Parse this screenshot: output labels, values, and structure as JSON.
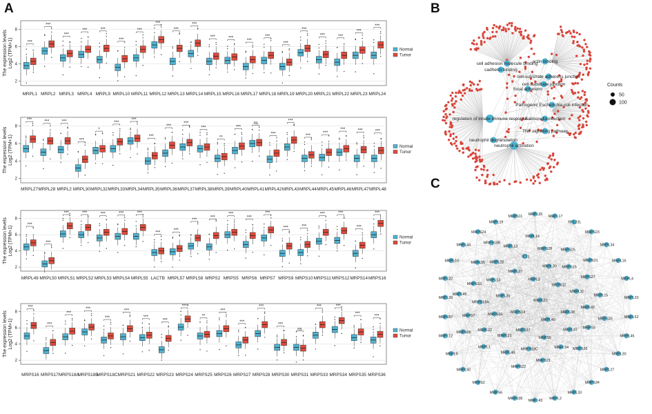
{
  "figure": {
    "panel_labels": {
      "a": "A",
      "b": "B",
      "c": "C"
    },
    "colors": {
      "normal": "#4fb3d2",
      "tumor": "#dd4b3c",
      "grid": "#d9d9d9",
      "edge": "#bdbdbd",
      "enrich_term": "#4fb3d2",
      "enrich_gene": "#d8453a",
      "net_node": "#4fb3d2",
      "net_edge": "#b6b6b6"
    }
  },
  "chart_data": [
    {
      "type": "boxplot",
      "panel": "A1",
      "ylabel": "The expression levels",
      "ylabel2": "Log2 (TPM+1)",
      "yticks": [
        2,
        4,
        6,
        8
      ],
      "ylim": [
        1.5,
        9
      ],
      "legend": [
        "Normal",
        "Tumor"
      ],
      "categories": [
        "MRPL1",
        "MRPL2",
        "MRPL3",
        "MRPL4",
        "MRPL9",
        "MRPL10",
        "MRPL11",
        "MRPL12",
        "MRPL13",
        "MRPL14",
        "MRPL15",
        "MRPL16",
        "MRPL17",
        "MRPL18",
        "MRPL19",
        "MRPL20",
        "MRPL21",
        "MRPL22",
        "MRPL23",
        "MRPL24"
      ],
      "series": [
        {
          "name": "Normal",
          "median": [
            3.8,
            5.5,
            4.7,
            5.1,
            4.5,
            3.6,
            4.7,
            6.2,
            4.3,
            5.2,
            4.3,
            4.4,
            3.7,
            4.4,
            3.7,
            5.3,
            4.5,
            4.2,
            5.0,
            5.0
          ]
        },
        {
          "name": "Tumor",
          "median": [
            4.3,
            6.3,
            5.2,
            5.7,
            5.8,
            4.6,
            5.7,
            6.8,
            5.8,
            6.4,
            4.9,
            4.8,
            4.5,
            5.0,
            4.2,
            5.8,
            5.1,
            5.0,
            5.6,
            6.2
          ]
        }
      ],
      "significance": [
        "***",
        "***",
        "***",
        "***",
        "***",
        "***",
        "***",
        "***",
        "***",
        "***",
        "***",
        "***",
        "***",
        "***",
        "***",
        "***",
        "***",
        "***",
        "***",
        "***"
      ]
    },
    {
      "type": "boxplot",
      "panel": "A2",
      "ylabel": "The expression levels",
      "ylabel2": "Log2 (TPM+1)",
      "yticks": [
        2,
        4,
        6,
        8
      ],
      "ylim": [
        1.5,
        9
      ],
      "legend": [
        "Normal",
        "Tumor"
      ],
      "categories": [
        "MRPL27",
        "MRPL28",
        "MRPL2",
        "MRPL30",
        "MRPL32",
        "MRPL33",
        "MRPL34",
        "MRPL35",
        "MRPL36",
        "MRPL37",
        "MRPL38",
        "MRPL39",
        "MRPL40",
        "MRPL41",
        "MRPL42",
        "MRPL43",
        "MRPL44",
        "MRPL45",
        "MRPL46",
        "MRPL47",
        "MRPL48"
      ],
      "series": [
        {
          "name": "Normal",
          "median": [
            5.4,
            5.0,
            5.3,
            3.2,
            5.2,
            5.4,
            6.3,
            4.0,
            4.9,
            5.6,
            5.4,
            4.3,
            5.2,
            6.0,
            4.2,
            5.6,
            4.3,
            4.4,
            5.0,
            4.3,
            4.3
          ]
        },
        {
          "name": "Tumor",
          "median": [
            6.5,
            6.3,
            6.3,
            4.2,
            5.4,
            6.2,
            6.6,
            4.6,
            5.8,
            6.1,
            5.6,
            4.5,
            5.7,
            6.1,
            4.9,
            6.4,
            4.7,
            5.0,
            5.4,
            5.3,
            5.2
          ]
        }
      ],
      "significance": [
        "***",
        "***",
        "***",
        "***",
        "*",
        "***",
        "***",
        "***",
        "***",
        "***",
        "***",
        "**",
        "***",
        "ns",
        "***",
        "***",
        "***",
        "***",
        "***",
        "***",
        "***"
      ]
    },
    {
      "type": "boxplot",
      "panel": "A3",
      "ylabel": "The expression levels",
      "ylabel2": "Log2 (TPM+1)",
      "yticks": [
        2,
        4,
        6,
        8
      ],
      "ylim": [
        1.5,
        9
      ],
      "legend": [
        "Normal",
        "Tumor"
      ],
      "categories": [
        "MRPL49",
        "MRPL50",
        "MRPL51",
        "MRPL52",
        "MRPL53",
        "MRPL54",
        "MRPL55",
        "LACTB",
        "MRPL57",
        "MRPL58",
        "MRPS2",
        "MRPS5",
        "MRPS6",
        "MRPS7",
        "MRPS9",
        "MRPS10",
        "MRPS11",
        "MRPS12",
        "MRPS14",
        "MRPS16"
      ],
      "series": [
        {
          "name": "Normal",
          "median": [
            4.5,
            2.4,
            6.1,
            6.0,
            5.6,
            5.8,
            5.8,
            3.8,
            3.9,
            4.6,
            4.5,
            6.0,
            4.8,
            5.6,
            3.7,
            3.8,
            5.2,
            5.3,
            3.7,
            6.0
          ]
        },
        {
          "name": "Tumor",
          "median": [
            5.0,
            2.8,
            7.1,
            6.9,
            6.3,
            6.4,
            6.9,
            4.0,
            4.3,
            5.6,
            5.9,
            6.3,
            5.9,
            6.6,
            4.6,
            4.8,
            6.3,
            6.5,
            4.7,
            7.4
          ]
        }
      ],
      "significance": [
        "***",
        "***",
        "***",
        "***",
        "***",
        "***",
        "***",
        "***",
        "***",
        "***",
        "***",
        "***",
        "***",
        "***",
        "***",
        "***",
        "***",
        "***",
        "***",
        "***"
      ]
    },
    {
      "type": "boxplot",
      "panel": "A4",
      "ylabel": "The expression levels",
      "ylabel2": "Log2 (TPM+1)",
      "yticks": [
        2,
        4,
        6,
        8
      ],
      "ylim": [
        1.5,
        9
      ],
      "legend": [
        "Normal",
        "Tumor"
      ],
      "categories": [
        "MRPS16",
        "MRPS17",
        "MRPS18A",
        "MRPS18B",
        "MRPS18C",
        "MRPS21",
        "MRPS22",
        "MRPS23",
        "MRPS24",
        "MRPS25",
        "MRPS26",
        "MRPS27",
        "MRPS28",
        "MRPS30",
        "MRPS31",
        "MRPS33",
        "MRPS34",
        "MRPS35",
        "MRPS36"
      ],
      "series": [
        {
          "name": "Normal",
          "median": [
            5.0,
            3.2,
            4.9,
            5.5,
            4.5,
            4.9,
            4.8,
            3.3,
            6.1,
            5.0,
            5.3,
            3.9,
            5.3,
            3.6,
            3.6,
            5.1,
            5.8,
            4.8,
            4.5
          ]
        },
        {
          "name": "Tumor",
          "median": [
            6.3,
            4.2,
            5.6,
            6.1,
            5.0,
            5.9,
            5.1,
            4.7,
            7.1,
            5.2,
            5.9,
            4.5,
            6.4,
            4.2,
            3.5,
            6.4,
            6.9,
            5.5,
            5.2
          ]
        }
      ],
      "significance": [
        "***",
        "***",
        "***",
        "***",
        "***",
        "***",
        "***",
        "***",
        "***",
        "**",
        "***",
        "***",
        "***",
        "***",
        "ns",
        "***",
        "***",
        "***",
        "***"
      ]
    }
  ],
  "enrichment": {
    "terms": [
      "cell adhesion molecule binding",
      "cadherin binding",
      "actin binding",
      "cell-substrate adherens junction",
      "cell-substrate junction",
      "focal adhesion",
      "Pathogenic Escherichia coli infection",
      "Salmonella infection",
      "regulation of innate immune response",
      "TNF signaling pathway",
      "neutrophil degranulation",
      "neutrophil activation"
    ],
    "legend_title": "Counts",
    "legend_values": [
      "50",
      "100"
    ]
  },
  "network": {
    "nodes": [
      "MRPL35",
      "MRPL17",
      "RPL23L",
      "MRPS23",
      "MRPL34",
      "MRPL16",
      "MRPL4",
      "MRPL20",
      "MRPL52",
      "MRPL46",
      "MRPL30",
      "MRPL27",
      "MRPS34",
      "MRPL33",
      "MRPL2",
      "MRPL43",
      "MRPS35",
      "MRPS6",
      "MRPS2",
      "MRPL50",
      "MRPL9",
      "MRPL12",
      "MRPL57",
      "MRPL39",
      "MRPL32",
      "MRPL10",
      "MRPL44",
      "MRPS24",
      "MRPL19",
      "MRPS11",
      "MRPL51",
      "MRPS14",
      "MRPL3",
      "MRPL40",
      "MRPL36",
      "MRPS12",
      "MRPS17",
      "MRPL37",
      "MRPL38",
      "MRPS16",
      "MRPL30",
      "MRPS5",
      "MRPL53",
      "MRPL11",
      "MRPL21",
      "ICT1",
      "MRPL47",
      "MRPS18A",
      "MRPS15",
      "MRPS18C",
      "MRPL28",
      "MRPL42",
      "MRPL22",
      "MRPS28",
      "MRPL54",
      "MRPS10",
      "MRPS27",
      "MRPL48",
      "MRPL13",
      "MRPS9",
      "MRPS7",
      "MRPS25",
      "MRPS21",
      "MRPL55",
      "MRPL15",
      "MRPL1",
      "MRPL14",
      "MRPS26",
      "MRPL45",
      "MRPS31",
      "MRPS22",
      "MRPS18B",
      "MRPS33",
      "MRPS36"
    ]
  }
}
